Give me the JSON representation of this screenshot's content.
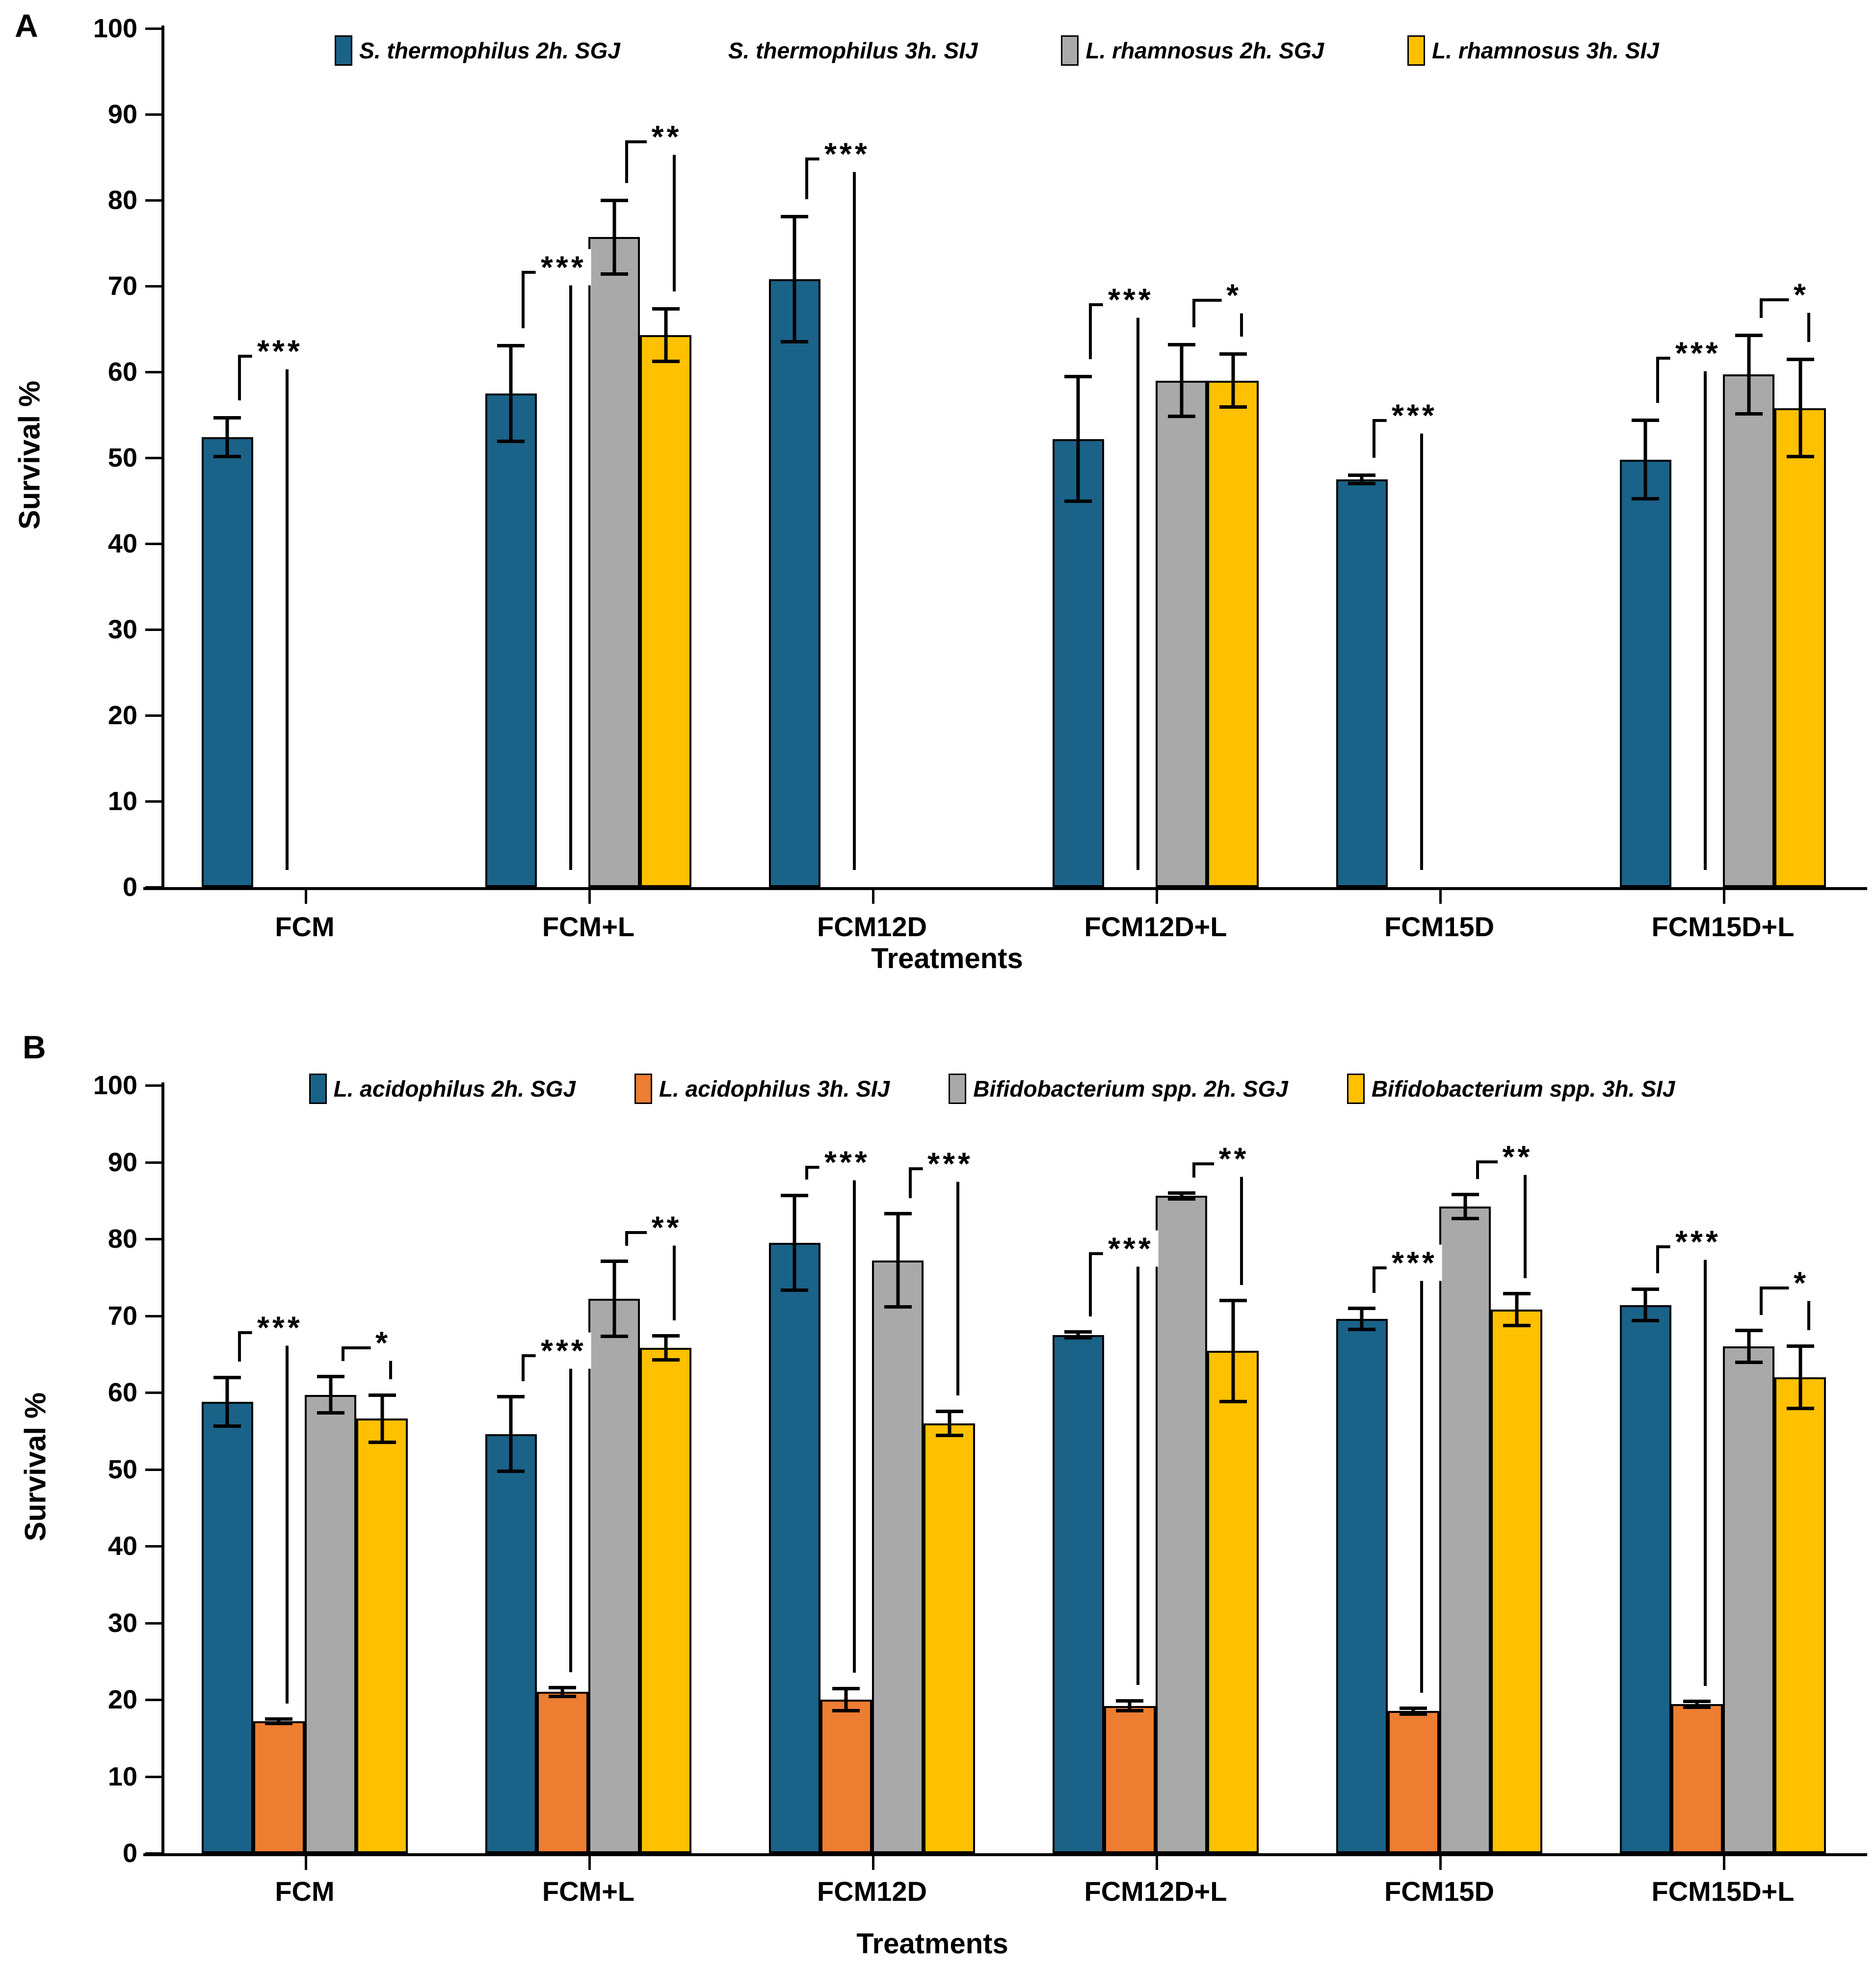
{
  "figure": {
    "y_axis_title": "Survival %",
    "x_axis_title": "Treatments",
    "colors": {
      "blue": "#1A6288",
      "white": "#FFFFFF",
      "gray": "#A9A9A9",
      "yellow": "#FFC000",
      "orange": "#ED7D31",
      "bar_border": "#000000",
      "axis": "#000000"
    }
  },
  "chart_data": [
    {
      "panel_letter": "A",
      "type": "bar",
      "title": "",
      "xlabel": "Treatments",
      "ylabel": "Survival %",
      "ylim": [
        0,
        100
      ],
      "ytick_step": 10,
      "grid": false,
      "legend_position": "top-inside",
      "categories": [
        "FCM",
        "FCM+L",
        "FCM12D",
        "FCM12D+L",
        "FCM15D",
        "FCM15D+L"
      ],
      "series": [
        {
          "name": "S. thermophilus 2h. SGJ",
          "color": "#1A6288",
          "values": [
            52.4,
            57.5,
            70.8,
            52.2,
            47.5,
            49.8
          ],
          "errors": [
            2.3,
            5.6,
            7.3,
            7.3,
            0.5,
            4.6
          ]
        },
        {
          "name": "S. thermophilus 3h. SIJ",
          "color": "#FFFFFF",
          "values": [
            0,
            0,
            0,
            0,
            0,
            0
          ],
          "errors": [
            0,
            0,
            0,
            0,
            0,
            0
          ]
        },
        {
          "name": "L. rhamnosus  2h. SGJ",
          "color": "#A9A9A9",
          "values": [
            null,
            75.7,
            null,
            59.0,
            null,
            59.7
          ],
          "errors": [
            null,
            4.3,
            null,
            4.2,
            null,
            4.6
          ]
        },
        {
          "name": "L. rhamnosus 3h. SIJ",
          "color": "#FFC000",
          "values": [
            null,
            64.3,
            null,
            59.0,
            null,
            55.8
          ],
          "errors": [
            null,
            3.1,
            null,
            3.1,
            null,
            5.7
          ]
        }
      ],
      "significance": [
        {
          "category_index": 0,
          "series_pair": [
            0,
            1
          ],
          "label": "***",
          "top": 62.0
        },
        {
          "category_index": 1,
          "series_pair": [
            0,
            1
          ],
          "label": "***",
          "top": 71.8
        },
        {
          "category_index": 1,
          "series_pair": [
            2,
            3
          ],
          "label": "**",
          "top": 87.0
        },
        {
          "category_index": 2,
          "series_pair": [
            0,
            1
          ],
          "label": "***",
          "top": 85.0
        },
        {
          "category_index": 3,
          "series_pair": [
            0,
            1
          ],
          "label": "***",
          "top": 68.0
        },
        {
          "category_index": 3,
          "series_pair": [
            2,
            3
          ],
          "label": "*",
          "top": 68.5
        },
        {
          "category_index": 4,
          "series_pair": [
            0,
            1
          ],
          "label": "***",
          "top": 54.5
        },
        {
          "category_index": 5,
          "series_pair": [
            0,
            1
          ],
          "label": "***",
          "top": 61.8
        },
        {
          "category_index": 5,
          "series_pair": [
            2,
            3
          ],
          "label": "*",
          "top": 68.6
        }
      ]
    },
    {
      "panel_letter": "B",
      "type": "bar",
      "title": "",
      "xlabel": "Treatments",
      "ylabel": "Survival %",
      "ylim": [
        0,
        100
      ],
      "ytick_step": 10,
      "grid": false,
      "legend_position": "top-inside",
      "categories": [
        "FCM",
        "FCM+L",
        "FCM12D",
        "FCM12D+L",
        "FCM15D",
        "FCM15D+L"
      ],
      "series": [
        {
          "name": "L. acidophilus  2h. SGJ",
          "color": "#1A6288",
          "values": [
            58.8,
            54.6,
            79.5,
            67.5,
            69.6,
            71.4
          ],
          "errors": [
            3.2,
            4.9,
            6.2,
            0.4,
            1.4,
            2.1
          ]
        },
        {
          "name": "L. acidophilus  3h. SIJ",
          "color": "#ED7D31",
          "values": [
            17.2,
            21.0,
            20.0,
            19.2,
            18.5,
            19.4
          ],
          "errors": [
            0.3,
            0.6,
            1.5,
            0.7,
            0.4,
            0.4
          ]
        },
        {
          "name": "Bifidobacterium spp.  2h. SGJ",
          "color": "#A9A9A9",
          "values": [
            59.7,
            72.2,
            77.2,
            85.6,
            84.2,
            66.0
          ],
          "errors": [
            2.4,
            4.9,
            6.1,
            0.4,
            1.6,
            2.1
          ]
        },
        {
          "name": "Bifidobacterium spp. 3h. SIJ",
          "color": "#FFC000",
          "values": [
            56.6,
            65.8,
            56.0,
            65.4,
            70.8,
            62.0
          ],
          "errors": [
            3.1,
            1.6,
            1.6,
            6.6,
            2.1,
            4.1
          ]
        }
      ],
      "significance": [
        {
          "category_index": 0,
          "series_pair": [
            0,
            1
          ],
          "label": "***",
          "top": 68.0
        },
        {
          "category_index": 0,
          "series_pair": [
            2,
            3
          ],
          "label": "*",
          "top": 66.0
        },
        {
          "category_index": 1,
          "series_pair": [
            0,
            1
          ],
          "label": "***",
          "top": 65.0
        },
        {
          "category_index": 1,
          "series_pair": [
            2,
            3
          ],
          "label": "**",
          "top": 81.0
        },
        {
          "category_index": 2,
          "series_pair": [
            0,
            1
          ],
          "label": "***",
          "top": 89.5
        },
        {
          "category_index": 2,
          "series_pair": [
            2,
            3
          ],
          "label": "***",
          "top": 89.3
        },
        {
          "category_index": 3,
          "series_pair": [
            0,
            1
          ],
          "label": "***",
          "top": 78.3
        },
        {
          "category_index": 3,
          "series_pair": [
            2,
            3
          ],
          "label": "**",
          "top": 90.0
        },
        {
          "category_index": 4,
          "series_pair": [
            0,
            1
          ],
          "label": "***",
          "top": 76.4
        },
        {
          "category_index": 4,
          "series_pair": [
            2,
            3
          ],
          "label": "**",
          "top": 90.2
        },
        {
          "category_index": 5,
          "series_pair": [
            0,
            1
          ],
          "label": "***",
          "top": 79.2
        },
        {
          "category_index": 5,
          "series_pair": [
            2,
            3
          ],
          "label": "*",
          "top": 73.8
        }
      ]
    }
  ]
}
